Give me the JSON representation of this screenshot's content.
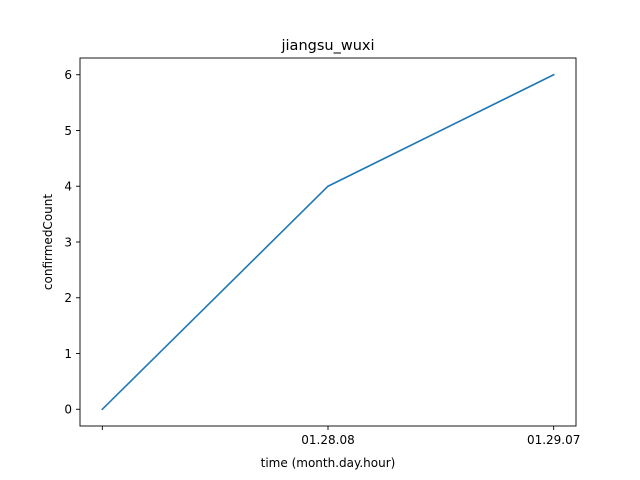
{
  "chart_data": {
    "type": "line",
    "title": "jiangsu_wuxi",
    "xlabel": "time (month.day.hour)",
    "ylabel": "confirmedCount",
    "x_ticks": [
      "",
      "01.28.08",
      "01.29.07"
    ],
    "y_ticks": [
      0,
      1,
      2,
      3,
      4,
      5,
      6
    ],
    "ylim": [
      -0.3,
      6.3
    ],
    "grid": false,
    "series": [
      {
        "color": "#1f77b4",
        "values": [
          0,
          4,
          6
        ]
      }
    ]
  }
}
